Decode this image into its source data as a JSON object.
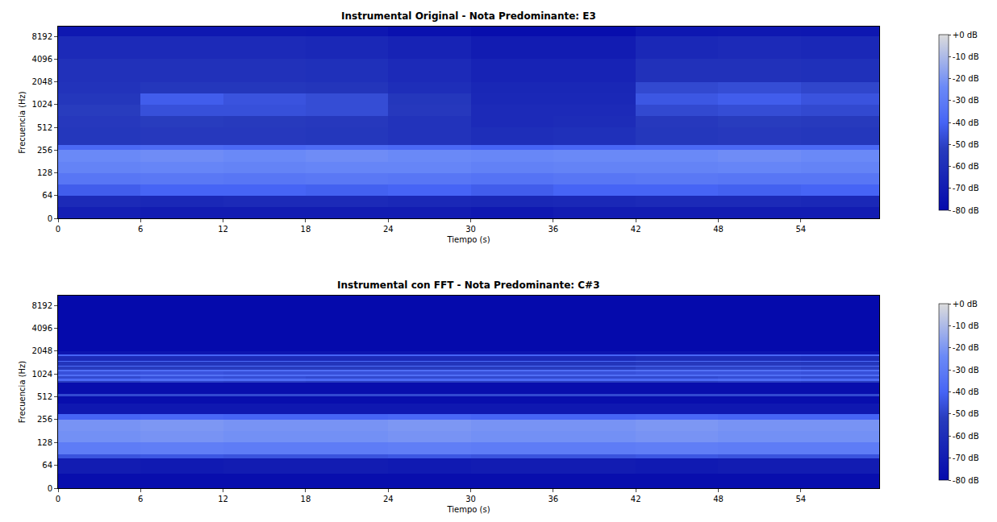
{
  "chart_data": [
    {
      "type": "heatmap",
      "title": "Instrumental Original - Nota Predominante: E3",
      "x_label": "Tiempo (s)",
      "y_label": "Frecuencia (Hz)",
      "log": "y",
      "color": "Plasma",
      "x": [
        0,
        6,
        12,
        18,
        24,
        30,
        36,
        42,
        48,
        54,
        59.7
      ],
      "y": [
        0,
        32,
        64,
        90,
        128,
        180,
        256,
        300,
        512,
        724,
        1024,
        1448,
        2048,
        4096,
        8192,
        11025
      ],
      "z": [
        [
          -68,
          -70,
          -70,
          -70,
          -70,
          -72,
          -70,
          -70,
          -70,
          -70
        ],
        [
          -62,
          -63,
          -62,
          -62,
          -63,
          -64,
          -63,
          -62,
          -62,
          -63
        ],
        [
          -42,
          -40,
          -40,
          -41,
          -40,
          -42,
          -40,
          -40,
          -41,
          -40
        ],
        [
          -33,
          -32,
          -33,
          -32,
          -33,
          -34,
          -33,
          -32,
          -33,
          -33
        ],
        [
          -27,
          -26,
          -27,
          -26,
          -26,
          -28,
          -27,
          -27,
          -26,
          -27
        ],
        [
          -24,
          -23,
          -24,
          -23,
          -24,
          -25,
          -24,
          -24,
          -23,
          -24
        ],
        [
          -38,
          -37,
          -38,
          -37,
          -38,
          -40,
          -39,
          -38,
          -38,
          -38
        ],
        [
          -55,
          -54,
          -54,
          -55,
          -57,
          -60,
          -59,
          -55,
          -54,
          -55
        ],
        [
          -54,
          -52,
          -53,
          -54,
          -57,
          -62,
          -61,
          -54,
          -52,
          -53
        ],
        [
          -52,
          -46,
          -46,
          -47,
          -54,
          -62,
          -62,
          -48,
          -47,
          -48
        ],
        [
          -55,
          -42,
          -45,
          -47,
          -55,
          -63,
          -63,
          -44,
          -42,
          -45
        ],
        [
          -57,
          -55,
          -55,
          -56,
          -60,
          -64,
          -64,
          -48,
          -47,
          -49
        ],
        [
          -58,
          -58,
          -58,
          -59,
          -62,
          -66,
          -66,
          -58,
          -58,
          -59
        ],
        [
          -62,
          -62,
          -62,
          -63,
          -66,
          -70,
          -70,
          -63,
          -62,
          -63
        ],
        [
          -72,
          -72,
          -72,
          -73,
          -76,
          -78,
          -78,
          -73,
          -72,
          -73
        ]
      ],
      "xlim": [
        0,
        59.7
      ],
      "ylim": [
        0,
        11025
      ],
      "xticks": [
        0,
        6,
        12,
        18,
        24,
        30,
        36,
        42,
        48,
        54
      ],
      "yticks": [
        0,
        64,
        128,
        256,
        512,
        1024,
        2048,
        4096,
        8192
      ],
      "colorbar": {
        "range": [
          -80,
          0
        ],
        "ticks": [
          {
            "value": 0,
            "label": "+0 dB"
          },
          {
            "value": -10,
            "label": "-10 dB"
          },
          {
            "value": -20,
            "label": "-20 dB"
          },
          {
            "value": -30,
            "label": "-30 dB"
          },
          {
            "value": -40,
            "label": "-40 dB"
          },
          {
            "value": -50,
            "label": "-50 dB"
          },
          {
            "value": -60,
            "label": "-60 dB"
          },
          {
            "value": -70,
            "label": "-70 dB"
          },
          {
            "value": -80,
            "label": "-80 dB"
          }
        ]
      }
    },
    {
      "type": "heatmap",
      "title": "Instrumental con FFT - Nota Predominante: C#3",
      "x_label": "Tiempo (s)",
      "y_label": "Frecuencia (Hz)",
      "log": "y",
      "color": "Plasma",
      "x": [
        0,
        6,
        12,
        18,
        24,
        30,
        36,
        42,
        48,
        54,
        59.7
      ],
      "y": [
        0,
        40,
        80,
        90,
        128,
        180,
        256,
        300,
        420,
        520,
        560,
        780,
        830,
        880,
        960,
        1000,
        1100,
        1150,
        1280,
        1330,
        1480,
        1530,
        1780,
        1840,
        2048,
        4096,
        11025
      ],
      "z": [
        [
          -78,
          -78,
          -78,
          -78,
          -78,
          -78,
          -78,
          -78,
          -78,
          -78
        ],
        [
          -70,
          -71,
          -70,
          -70,
          -71,
          -70,
          -70,
          -71,
          -70,
          -70
        ],
        [
          -45,
          -44,
          -45,
          -45,
          -44,
          -45,
          -45,
          -44,
          -45,
          -45
        ],
        [
          -30,
          -29,
          -30,
          -30,
          -29,
          -30,
          -30,
          -29,
          -30,
          -30
        ],
        [
          -22,
          -21,
          -22,
          -22,
          -21,
          -22,
          -22,
          -21,
          -22,
          -22
        ],
        [
          -21,
          -20,
          -21,
          -21,
          -20,
          -21,
          -21,
          -20,
          -21,
          -21
        ],
        [
          -40,
          -39,
          -40,
          -40,
          -39,
          -40,
          -40,
          -39,
          -40,
          -40
        ],
        [
          -72,
          -72,
          -72,
          -72,
          -72,
          -72,
          -72,
          -72,
          -72,
          -72
        ],
        [
          -78,
          -78,
          -78,
          -78,
          -78,
          -78,
          -78,
          -78,
          -78,
          -78
        ],
        [
          -48,
          -48,
          -48,
          -48,
          -48,
          -48,
          -48,
          -48,
          -48,
          -48
        ],
        [
          -78,
          -78,
          -78,
          -78,
          -78,
          -78,
          -78,
          -78,
          -78,
          -78
        ],
        [
          -52,
          -50,
          -51,
          -52,
          -52,
          -52,
          -52,
          -52,
          -51,
          -52
        ],
        [
          -38,
          -36,
          -37,
          -38,
          -38,
          -38,
          -38,
          -38,
          -37,
          -38
        ],
        [
          -48,
          -46,
          -47,
          -48,
          -48,
          -48,
          -48,
          -48,
          -47,
          -48
        ],
        [
          -36,
          -35,
          -36,
          -36,
          -36,
          -36,
          -36,
          -36,
          -36,
          -36
        ],
        [
          -46,
          -45,
          -46,
          -46,
          -46,
          -46,
          -46,
          -45,
          -45,
          -46
        ],
        [
          -36,
          -36,
          -36,
          -36,
          -36,
          -36,
          -36,
          -35,
          -35,
          -36
        ],
        [
          -52,
          -52,
          -52,
          -52,
          -52,
          -52,
          -52,
          -50,
          -50,
          -51
        ],
        [
          -37,
          -37,
          -37,
          -37,
          -37,
          -37,
          -37,
          -36,
          -36,
          -37
        ],
        [
          -56,
          -56,
          -56,
          -56,
          -56,
          -56,
          -56,
          -54,
          -54,
          -55
        ],
        [
          -38,
          -38,
          -38,
          -38,
          -38,
          -38,
          -38,
          -37,
          -37,
          -38
        ],
        [
          -62,
          -62,
          -62,
          -62,
          -62,
          -62,
          -62,
          -60,
          -60,
          -61
        ],
        [
          -40,
          -40,
          -40,
          -40,
          -40,
          -40,
          -40,
          -39,
          -39,
          -40
        ],
        [
          -74,
          -74,
          -74,
          -74,
          -74,
          -74,
          -74,
          -74,
          -74,
          -74
        ],
        [
          -80,
          -80,
          -80,
          -80,
          -80,
          -80,
          -80,
          -80,
          -80,
          -80
        ],
        [
          -80,
          -80,
          -80,
          -80,
          -80,
          -80,
          -80,
          -80,
          -80,
          -80
        ]
      ],
      "xlim": [
        0,
        59.7
      ],
      "ylim": [
        0,
        11025
      ],
      "xticks": [
        0,
        6,
        12,
        18,
        24,
        30,
        36,
        42,
        48,
        54
      ],
      "yticks": [
        0,
        64,
        128,
        256,
        512,
        1024,
        2048,
        4096,
        8192
      ],
      "colorbar": {
        "range": [
          -80,
          0
        ],
        "ticks": [
          {
            "value": 0,
            "label": "+0 dB"
          },
          {
            "value": -10,
            "label": "-10 dB"
          },
          {
            "value": -20,
            "label": "-20 dB"
          },
          {
            "value": -30,
            "label": "-30 dB"
          },
          {
            "value": -40,
            "label": "-40 dB"
          },
          {
            "value": -50,
            "label": "-50 dB"
          },
          {
            "value": -60,
            "label": "-60 dB"
          },
          {
            "value": -70,
            "label": "-70 dB"
          },
          {
            "value": -80,
            "label": "-80 dB"
          }
        ]
      }
    }
  ]
}
